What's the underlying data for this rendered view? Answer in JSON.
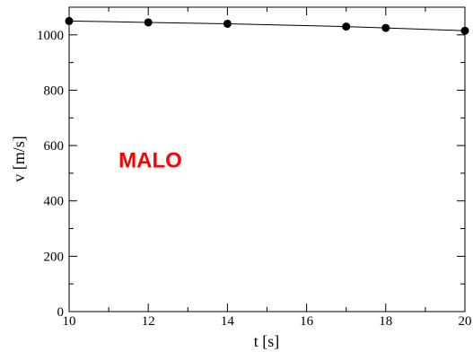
{
  "chart_data": {
    "type": "line",
    "xlabel": "t [s]",
    "ylabel": "v [m/s]",
    "xlim": [
      10,
      20
    ],
    "ylim": [
      0,
      1100
    ],
    "x_ticks": [
      10,
      12,
      14,
      16,
      18,
      20
    ],
    "y_ticks": [
      0,
      200,
      400,
      600,
      800,
      1000
    ],
    "grid": false,
    "markers": "filled-circle",
    "series": [
      {
        "x": [
          10,
          12,
          14,
          17,
          18,
          20
        ],
        "y": [
          1050,
          1045,
          1040,
          1030,
          1025,
          1015
        ],
        "color": "#000000"
      }
    ],
    "annotation": {
      "text": "MALO",
      "color": "#ff0000",
      "x": 11.25,
      "y": 550
    }
  }
}
